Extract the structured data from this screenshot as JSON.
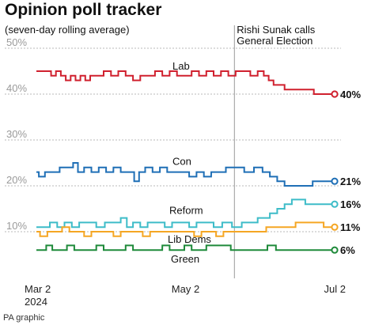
{
  "chart_data": {
    "type": "line",
    "title": "Opinion poll tracker",
    "subtitle": "(seven-day rolling average)",
    "credit": "PA graphic",
    "ylim": [
      0,
      50
    ],
    "yticks": [
      {
        "value": 10,
        "label": "10%"
      },
      {
        "value": 20,
        "label": "20%"
      },
      {
        "value": 30,
        "label": "30%"
      },
      {
        "value": 40,
        "label": "40%"
      },
      {
        "value": 50,
        "label": "50%"
      }
    ],
    "grid": true,
    "x_range": [
      "2024-03-02",
      "2024-07-02"
    ],
    "xticks": [
      {
        "date": "2024-03-02",
        "label": "Mar 2",
        "sublabel": "2024"
      },
      {
        "date": "2024-05-02",
        "label": "May 2",
        "sublabel": ""
      },
      {
        "date": "2024-07-02",
        "label": "Jul 2",
        "sublabel": ""
      }
    ],
    "annotation": {
      "date": "2024-05-22",
      "lines": [
        "Rishi Sunak calls",
        "General Election"
      ]
    },
    "series": [
      {
        "name": "Lab",
        "color": "#d0202e",
        "end_label": "40%",
        "points": [
          [
            "2024-03-02",
            45
          ],
          [
            "2024-03-07",
            45
          ],
          [
            "2024-03-09",
            44
          ],
          [
            "2024-03-11",
            45
          ],
          [
            "2024-03-13",
            44
          ],
          [
            "2024-03-15",
            43
          ],
          [
            "2024-03-17",
            44
          ],
          [
            "2024-03-19",
            43
          ],
          [
            "2024-03-21",
            44
          ],
          [
            "2024-03-23",
            43
          ],
          [
            "2024-03-25",
            44
          ],
          [
            "2024-03-28",
            44
          ],
          [
            "2024-03-31",
            45
          ],
          [
            "2024-04-03",
            44
          ],
          [
            "2024-04-06",
            45
          ],
          [
            "2024-04-09",
            44
          ],
          [
            "2024-04-12",
            43
          ],
          [
            "2024-04-15",
            44
          ],
          [
            "2024-04-18",
            44
          ],
          [
            "2024-04-21",
            45
          ],
          [
            "2024-04-24",
            44
          ],
          [
            "2024-04-27",
            45
          ],
          [
            "2024-04-30",
            44
          ],
          [
            "2024-05-03",
            44
          ],
          [
            "2024-05-06",
            45
          ],
          [
            "2024-05-09",
            44
          ],
          [
            "2024-05-12",
            45
          ],
          [
            "2024-05-15",
            44
          ],
          [
            "2024-05-18",
            45
          ],
          [
            "2024-05-21",
            44
          ],
          [
            "2024-05-24",
            45
          ],
          [
            "2024-05-27",
            45
          ],
          [
            "2024-05-30",
            44
          ],
          [
            "2024-06-02",
            45
          ],
          [
            "2024-06-04",
            44
          ],
          [
            "2024-06-06",
            43
          ],
          [
            "2024-06-08",
            42
          ],
          [
            "2024-06-10",
            42
          ],
          [
            "2024-06-13",
            41
          ],
          [
            "2024-06-18",
            41
          ],
          [
            "2024-06-22",
            41
          ],
          [
            "2024-06-25",
            40
          ],
          [
            "2024-06-28",
            40
          ],
          [
            "2024-07-02",
            40
          ]
        ]
      },
      {
        "name": "Con",
        "color": "#1f6fb6",
        "end_label": "21%",
        "points": [
          [
            "2024-03-02",
            23
          ],
          [
            "2024-03-04",
            22
          ],
          [
            "2024-03-07",
            23
          ],
          [
            "2024-03-10",
            23
          ],
          [
            "2024-03-13",
            24
          ],
          [
            "2024-03-16",
            24
          ],
          [
            "2024-03-18",
            25
          ],
          [
            "2024-03-20",
            23
          ],
          [
            "2024-03-23",
            24
          ],
          [
            "2024-03-26",
            23
          ],
          [
            "2024-03-29",
            24
          ],
          [
            "2024-04-01",
            23
          ],
          [
            "2024-04-04",
            24
          ],
          [
            "2024-04-07",
            23
          ],
          [
            "2024-04-10",
            23
          ],
          [
            "2024-04-12",
            21
          ],
          [
            "2024-04-14",
            23
          ],
          [
            "2024-04-17",
            24
          ],
          [
            "2024-04-20",
            23
          ],
          [
            "2024-04-23",
            24
          ],
          [
            "2024-04-26",
            23
          ],
          [
            "2024-04-29",
            23
          ],
          [
            "2024-05-02",
            23
          ],
          [
            "2024-05-05",
            22
          ],
          [
            "2024-05-08",
            23
          ],
          [
            "2024-05-11",
            22
          ],
          [
            "2024-05-14",
            23
          ],
          [
            "2024-05-17",
            23
          ],
          [
            "2024-05-20",
            24
          ],
          [
            "2024-05-24",
            24
          ],
          [
            "2024-05-28",
            23
          ],
          [
            "2024-06-01",
            24
          ],
          [
            "2024-06-04",
            23
          ],
          [
            "2024-06-07",
            22
          ],
          [
            "2024-06-10",
            21
          ],
          [
            "2024-06-13",
            20
          ],
          [
            "2024-06-17",
            20
          ],
          [
            "2024-06-21",
            20
          ],
          [
            "2024-06-25",
            21
          ],
          [
            "2024-06-28",
            21
          ],
          [
            "2024-07-02",
            21
          ]
        ]
      },
      {
        "name": "Reform",
        "color": "#3dbcc8",
        "end_label": "16%",
        "points": [
          [
            "2024-03-02",
            11
          ],
          [
            "2024-03-06",
            11
          ],
          [
            "2024-03-09",
            12
          ],
          [
            "2024-03-12",
            11
          ],
          [
            "2024-03-15",
            12
          ],
          [
            "2024-03-18",
            11
          ],
          [
            "2024-03-21",
            12
          ],
          [
            "2024-03-25",
            12
          ],
          [
            "2024-03-28",
            11
          ],
          [
            "2024-04-01",
            12
          ],
          [
            "2024-04-04",
            12
          ],
          [
            "2024-04-07",
            13
          ],
          [
            "2024-04-09",
            11
          ],
          [
            "2024-04-12",
            12
          ],
          [
            "2024-04-15",
            11
          ],
          [
            "2024-04-18",
            12
          ],
          [
            "2024-04-22",
            12
          ],
          [
            "2024-04-25",
            11
          ],
          [
            "2024-04-28",
            12
          ],
          [
            "2024-05-02",
            12
          ],
          [
            "2024-05-05",
            11
          ],
          [
            "2024-05-08",
            12
          ],
          [
            "2024-05-12",
            12
          ],
          [
            "2024-05-15",
            11
          ],
          [
            "2024-05-19",
            12
          ],
          [
            "2024-05-23",
            11
          ],
          [
            "2024-05-27",
            12
          ],
          [
            "2024-05-30",
            12
          ],
          [
            "2024-06-02",
            13
          ],
          [
            "2024-06-04",
            13
          ],
          [
            "2024-06-07",
            14
          ],
          [
            "2024-06-10",
            15
          ],
          [
            "2024-06-13",
            16
          ],
          [
            "2024-06-16",
            17
          ],
          [
            "2024-06-19",
            17
          ],
          [
            "2024-06-21",
            16
          ],
          [
            "2024-06-25",
            16
          ],
          [
            "2024-06-29",
            16
          ],
          [
            "2024-07-02",
            16
          ]
        ]
      },
      {
        "name": "Lib Dems",
        "color": "#f5a623",
        "end_label": "11%",
        "points": [
          [
            "2024-03-02",
            10
          ],
          [
            "2024-03-05",
            9
          ],
          [
            "2024-03-08",
            10
          ],
          [
            "2024-03-11",
            10
          ],
          [
            "2024-03-14",
            11
          ],
          [
            "2024-03-17",
            10
          ],
          [
            "2024-03-20",
            10
          ],
          [
            "2024-03-23",
            9
          ],
          [
            "2024-03-26",
            10
          ],
          [
            "2024-03-29",
            10
          ],
          [
            "2024-04-01",
            10
          ],
          [
            "2024-04-04",
            9
          ],
          [
            "2024-04-07",
            10
          ],
          [
            "2024-04-10",
            10
          ],
          [
            "2024-04-13",
            10
          ],
          [
            "2024-04-16",
            9
          ],
          [
            "2024-04-19",
            10
          ],
          [
            "2024-04-22",
            10
          ],
          [
            "2024-04-25",
            10
          ],
          [
            "2024-04-28",
            10
          ],
          [
            "2024-05-01",
            10
          ],
          [
            "2024-05-04",
            10
          ],
          [
            "2024-05-07",
            9
          ],
          [
            "2024-05-10",
            10
          ],
          [
            "2024-05-13",
            10
          ],
          [
            "2024-05-16",
            9
          ],
          [
            "2024-05-19",
            10
          ],
          [
            "2024-05-22",
            10
          ],
          [
            "2024-05-25",
            10
          ],
          [
            "2024-05-29",
            10
          ],
          [
            "2024-06-02",
            10
          ],
          [
            "2024-06-06",
            11
          ],
          [
            "2024-06-10",
            11
          ],
          [
            "2024-06-14",
            11
          ],
          [
            "2024-06-18",
            12
          ],
          [
            "2024-06-22",
            12
          ],
          [
            "2024-06-26",
            12
          ],
          [
            "2024-06-29",
            11
          ],
          [
            "2024-07-02",
            11
          ]
        ]
      },
      {
        "name": "Green",
        "color": "#1f8a3a",
        "end_label": "6%",
        "points": [
          [
            "2024-03-02",
            6
          ],
          [
            "2024-03-05",
            6
          ],
          [
            "2024-03-07",
            7
          ],
          [
            "2024-03-10",
            6
          ],
          [
            "2024-03-13",
            6
          ],
          [
            "2024-03-16",
            7
          ],
          [
            "2024-03-19",
            6
          ],
          [
            "2024-03-22",
            6
          ],
          [
            "2024-03-25",
            6
          ],
          [
            "2024-03-28",
            7
          ],
          [
            "2024-03-31",
            6
          ],
          [
            "2024-04-03",
            6
          ],
          [
            "2024-04-06",
            6
          ],
          [
            "2024-04-09",
            7
          ],
          [
            "2024-04-12",
            6
          ],
          [
            "2024-04-15",
            6
          ],
          [
            "2024-04-18",
            6
          ],
          [
            "2024-04-21",
            6
          ],
          [
            "2024-04-24",
            7
          ],
          [
            "2024-04-27",
            6
          ],
          [
            "2024-04-30",
            6
          ],
          [
            "2024-05-03",
            7
          ],
          [
            "2024-05-06",
            6
          ],
          [
            "2024-05-09",
            6
          ],
          [
            "2024-05-12",
            7
          ],
          [
            "2024-05-15",
            7
          ],
          [
            "2024-05-19",
            7
          ],
          [
            "2024-05-22",
            6
          ],
          [
            "2024-05-26",
            6
          ],
          [
            "2024-05-30",
            6
          ],
          [
            "2024-06-03",
            6
          ],
          [
            "2024-06-06",
            7
          ],
          [
            "2024-06-10",
            6
          ],
          [
            "2024-06-14",
            6
          ],
          [
            "2024-06-18",
            6
          ],
          [
            "2024-06-22",
            6
          ],
          [
            "2024-06-26",
            6
          ],
          [
            "2024-06-29",
            6
          ],
          [
            "2024-07-02",
            6
          ]
        ]
      }
    ]
  }
}
